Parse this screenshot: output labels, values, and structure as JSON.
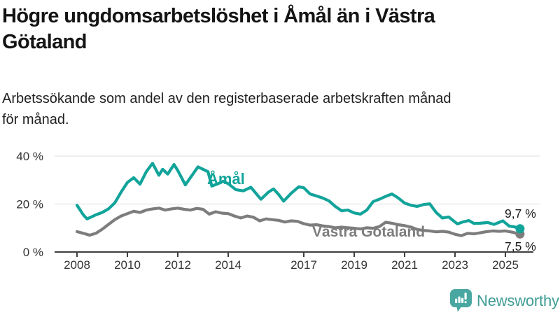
{
  "header": {
    "title_lines": [
      "Högre ungdomsarbetslöshet i Åmål än i Västra",
      "Götaland"
    ],
    "subtitle_lines": [
      "Arbetssökande som andel av den registerbaserade arbetskraften månad",
      "för månad."
    ]
  },
  "footer": {
    "brand": "Newsworthy",
    "brand_color": "#3f9c95",
    "logo_color": "#48a7a0"
  },
  "chart_data": {
    "type": "line",
    "title": "Högre ungdomsarbetslöshet i Åmål än i Västra Götaland",
    "subtitle": "Arbetssökande som andel av den registerbaserade arbetskraften månad för månad.",
    "xlabel": "",
    "ylabel": "",
    "unit": "%",
    "grid": "horizontal",
    "legend_position": "inline-labels",
    "x_axis": {
      "ticks": [
        2008,
        2010,
        2012,
        2014,
        2017,
        2019,
        2021,
        2023,
        2025
      ],
      "tick_labels": [
        "2008",
        "2010",
        "2012",
        "2014",
        "2017",
        "2019",
        "2021",
        "2023",
        "2025"
      ],
      "range": [
        2007.1,
        2026.3
      ]
    },
    "y_axis": {
      "ticks": [
        0,
        20,
        40
      ],
      "tick_labels": [
        "0 %",
        "20 %",
        "40 %"
      ],
      "range": [
        0,
        44
      ]
    },
    "series": [
      {
        "name": "Åmål",
        "color": "#12a49a",
        "end_label": "9,7 %",
        "end_value": 9.7,
        "points": [
          [
            2008.0,
            19.5
          ],
          [
            2008.25,
            15.5
          ],
          [
            2008.4,
            13.8
          ],
          [
            2008.75,
            15.5
          ],
          [
            2009.0,
            16.5
          ],
          [
            2009.25,
            18.0
          ],
          [
            2009.5,
            20.5
          ],
          [
            2009.75,
            25.0
          ],
          [
            2010.0,
            29.0
          ],
          [
            2010.25,
            31.0
          ],
          [
            2010.5,
            28.3
          ],
          [
            2010.75,
            33.5
          ],
          [
            2011.0,
            37.0
          ],
          [
            2011.25,
            32.0
          ],
          [
            2011.4,
            34.5
          ],
          [
            2011.6,
            32.5
          ],
          [
            2011.85,
            36.5
          ],
          [
            2012.0,
            34.0
          ],
          [
            2012.3,
            28.0
          ],
          [
            2012.5,
            31.0
          ],
          [
            2012.8,
            35.5
          ],
          [
            2013.0,
            34.5
          ],
          [
            2013.2,
            33.5
          ],
          [
            2013.35,
            27.5
          ],
          [
            2013.6,
            28.5
          ],
          [
            2013.8,
            29.5
          ],
          [
            2014.0,
            28.5
          ],
          [
            2014.3,
            26.0
          ],
          [
            2014.6,
            25.5
          ],
          [
            2014.9,
            27.0
          ],
          [
            2015.1,
            24.5
          ],
          [
            2015.3,
            22.0
          ],
          [
            2015.6,
            25.0
          ],
          [
            2015.8,
            26.3
          ],
          [
            2016.0,
            24.0
          ],
          [
            2016.2,
            21.2
          ],
          [
            2016.5,
            24.5
          ],
          [
            2016.8,
            27.2
          ],
          [
            2017.0,
            26.8
          ],
          [
            2017.25,
            24.2
          ],
          [
            2017.5,
            23.4
          ],
          [
            2017.75,
            22.5
          ],
          [
            2018.0,
            21.3
          ],
          [
            2018.25,
            19.0
          ],
          [
            2018.5,
            17.2
          ],
          [
            2018.75,
            17.5
          ],
          [
            2019.0,
            16.3
          ],
          [
            2019.25,
            15.8
          ],
          [
            2019.5,
            17.5
          ],
          [
            2019.75,
            21.0
          ],
          [
            2020.0,
            22.0
          ],
          [
            2020.25,
            23.2
          ],
          [
            2020.5,
            24.2
          ],
          [
            2020.75,
            22.5
          ],
          [
            2021.0,
            20.4
          ],
          [
            2021.25,
            19.5
          ],
          [
            2021.5,
            19.0
          ],
          [
            2021.75,
            19.8
          ],
          [
            2022.0,
            20.1
          ],
          [
            2022.25,
            16.5
          ],
          [
            2022.5,
            14.2
          ],
          [
            2022.75,
            14.6
          ],
          [
            2023.0,
            12.5
          ],
          [
            2023.1,
            11.7
          ],
          [
            2023.3,
            12.5
          ],
          [
            2023.55,
            13.1
          ],
          [
            2023.75,
            11.9
          ],
          [
            2024.0,
            12.0
          ],
          [
            2024.3,
            12.3
          ],
          [
            2024.55,
            11.5
          ],
          [
            2024.9,
            13.0
          ],
          [
            2025.15,
            10.8
          ],
          [
            2025.35,
            10.5
          ],
          [
            2025.58,
            9.7
          ]
        ]
      },
      {
        "name": "Västra Götaland",
        "color": "#7d7d7d",
        "end_label": "7,5 %",
        "end_value": 7.5,
        "points": [
          [
            2008.0,
            8.5
          ],
          [
            2008.25,
            7.8
          ],
          [
            2008.5,
            7.0
          ],
          [
            2008.75,
            7.8
          ],
          [
            2009.0,
            9.5
          ],
          [
            2009.25,
            11.5
          ],
          [
            2009.5,
            13.5
          ],
          [
            2009.75,
            15.0
          ],
          [
            2010.0,
            16.0
          ],
          [
            2010.25,
            17.0
          ],
          [
            2010.5,
            16.5
          ],
          [
            2010.75,
            17.5
          ],
          [
            2011.0,
            18.0
          ],
          [
            2011.25,
            18.3
          ],
          [
            2011.5,
            17.5
          ],
          [
            2011.75,
            18.0
          ],
          [
            2012.0,
            18.3
          ],
          [
            2012.25,
            17.8
          ],
          [
            2012.5,
            17.5
          ],
          [
            2012.75,
            18.2
          ],
          [
            2013.0,
            17.8
          ],
          [
            2013.25,
            15.8
          ],
          [
            2013.5,
            16.8
          ],
          [
            2013.75,
            16.2
          ],
          [
            2014.0,
            16.0
          ],
          [
            2014.25,
            15.0
          ],
          [
            2014.5,
            14.2
          ],
          [
            2014.75,
            15.0
          ],
          [
            2015.0,
            14.5
          ],
          [
            2015.25,
            13.0
          ],
          [
            2015.5,
            13.8
          ],
          [
            2015.75,
            13.5
          ],
          [
            2016.0,
            13.2
          ],
          [
            2016.25,
            12.5
          ],
          [
            2016.5,
            13.0
          ],
          [
            2016.75,
            12.8
          ],
          [
            2017.0,
            11.8
          ],
          [
            2017.25,
            11.2
          ],
          [
            2017.5,
            11.4
          ],
          [
            2017.75,
            10.9
          ],
          [
            2018.0,
            10.6
          ],
          [
            2018.25,
            10.1
          ],
          [
            2018.5,
            10.4
          ],
          [
            2018.75,
            10.1
          ],
          [
            2019.0,
            9.9
          ],
          [
            2019.25,
            9.6
          ],
          [
            2019.5,
            10.1
          ],
          [
            2019.75,
            9.9
          ],
          [
            2020.0,
            10.6
          ],
          [
            2020.25,
            12.4
          ],
          [
            2020.5,
            12.0
          ],
          [
            2020.75,
            11.4
          ],
          [
            2021.0,
            11.0
          ],
          [
            2021.25,
            10.4
          ],
          [
            2021.5,
            9.4
          ],
          [
            2021.75,
            9.0
          ],
          [
            2022.0,
            8.8
          ],
          [
            2022.25,
            8.4
          ],
          [
            2022.5,
            8.6
          ],
          [
            2022.75,
            8.3
          ],
          [
            2023.0,
            7.4
          ],
          [
            2023.25,
            6.8
          ],
          [
            2023.5,
            7.8
          ],
          [
            2023.75,
            7.6
          ],
          [
            2024.0,
            8.0
          ],
          [
            2024.25,
            8.5
          ],
          [
            2024.5,
            8.8
          ],
          [
            2024.75,
            8.6
          ],
          [
            2025.0,
            8.8
          ],
          [
            2025.25,
            8.3
          ],
          [
            2025.58,
            7.5
          ]
        ]
      }
    ]
  }
}
